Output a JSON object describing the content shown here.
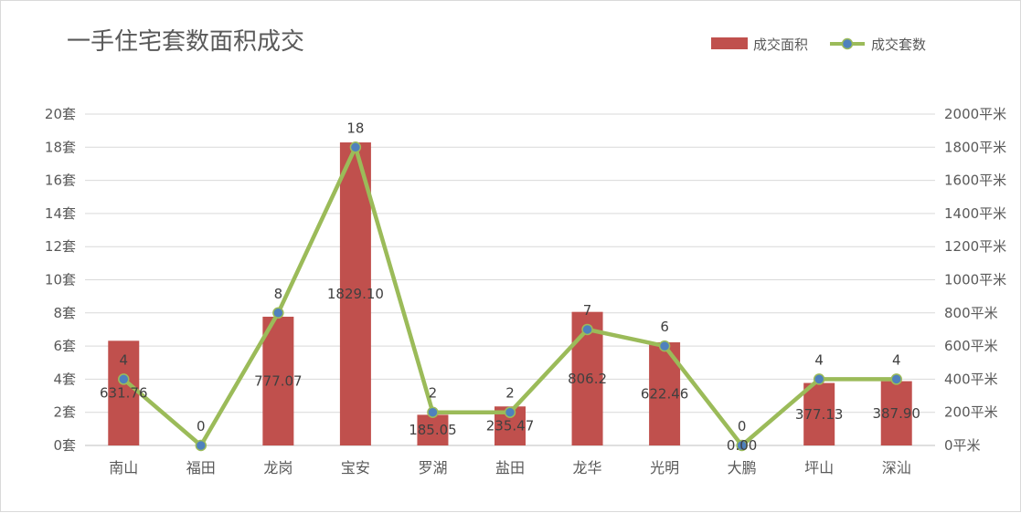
{
  "chart_data": {
    "type": "bar",
    "title": "一手住宅套数面积成交",
    "categories": [
      "南山",
      "福田",
      "龙岗",
      "宝安",
      "罗湖",
      "盐田",
      "龙华",
      "光明",
      "大鹏",
      "坪山",
      "深汕"
    ],
    "series": [
      {
        "name": "成交面积",
        "type": "bar",
        "axis": "right",
        "color": "#c0504d",
        "values": [
          631.76,
          0,
          777.07,
          1829.1,
          185.05,
          235.47,
          806.2,
          622.46,
          0,
          377.13,
          387.9
        ],
        "value_labels": [
          "631.76",
          "0",
          "777.07",
          "1829.10",
          "185.05",
          "235.47",
          "806.2",
          "622.46",
          "0.00",
          "377.13",
          "387.90"
        ]
      },
      {
        "name": "成交套数",
        "type": "line",
        "axis": "left",
        "color": "#9bbb59",
        "marker_color": "#4f81bd",
        "values": [
          4,
          0,
          8,
          18,
          2,
          2,
          7,
          6,
          0,
          4,
          4
        ],
        "value_labels": [
          "4",
          "0",
          "8",
          "18",
          "2",
          "2",
          "7",
          "6",
          "0",
          "4",
          "4"
        ]
      }
    ],
    "y_left": {
      "ylim": [
        0,
        20
      ],
      "ticks": [
        "0套",
        "2套",
        "4套",
        "6套",
        "8套",
        "10套",
        "12套",
        "14套",
        "16套",
        "18套",
        "20套"
      ]
    },
    "y_right": {
      "ylim": [
        0,
        2000
      ],
      "ticks": [
        "0平米",
        "200平米",
        "400平米",
        "600平米",
        "800平米",
        "1000平米",
        "1200平米",
        "1400平米",
        "1600平米",
        "1800平米",
        "2000平米"
      ]
    },
    "grid": true,
    "legend_position": "top-right"
  }
}
